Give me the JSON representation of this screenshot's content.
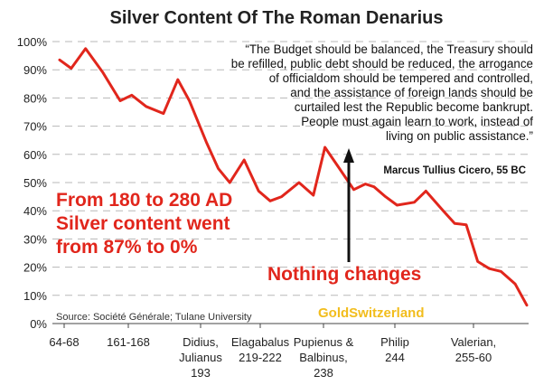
{
  "chart_data": {
    "type": "line",
    "title": "Silver Content Of The Roman Denarius",
    "xlabel": "",
    "ylabel": "",
    "ylim": [
      0,
      100
    ],
    "yticks": [
      "0%",
      "10%",
      "20%",
      "30%",
      "40%",
      "50%",
      "60%",
      "70%",
      "80%",
      "90%",
      "100%"
    ],
    "categories": [
      "64-68",
      "161-168",
      "Didius, Julianus 193",
      "Elagabalus 219-222",
      "Pupienus & Balbinus, 238",
      "Philip 244",
      "Valerian, 255-60"
    ],
    "series": [
      {
        "name": "Silver content (%)",
        "color": "#e1261c",
        "x": [
          0,
          0.4,
          0.9,
          1.5,
          2.1,
          2.5,
          3.0,
          3.6,
          4.1,
          4.5,
          5.1,
          5.5,
          5.9,
          6.4,
          6.9,
          7.3,
          7.7,
          8.3,
          8.8,
          9.2,
          9.7,
          10.2,
          10.6,
          10.9,
          11.3,
          11.7,
          12.3,
          12.7,
          13.3,
          13.7,
          14.1,
          14.5,
          14.9,
          15.3,
          15.8,
          16.2
        ],
        "values": [
          93.5,
          90.5,
          97.5,
          89,
          79,
          81,
          77,
          74.5,
          86.5,
          79,
          64,
          55,
          50,
          58,
          47,
          43.5,
          45,
          50,
          45.5,
          62.5,
          55,
          47.5,
          49.5,
          48.5,
          45,
          42,
          43,
          47,
          40,
          35.5,
          35,
          22,
          19.5,
          18.5,
          14,
          6.5
        ]
      }
    ],
    "quote_lines": [
      "“The Budget should be balanced, the Treasury should",
      "be refilled, public debt should be reduced, the arrogance",
      "of officialdom should be tempered and controlled,",
      "and the assistance of foreign lands should be",
      "curtailed lest the Republic become bankrupt.",
      "People must again learn to work, instead of",
      "living on public assistance.”"
    ],
    "quote_attribution": "Marcus Tullius Cicero, 55 BC",
    "annotation_lines": [
      "From 180 to 280 AD",
      "Silver content went",
      "from 87% to 0%"
    ],
    "annotation_nothing": "Nothing changes",
    "watermark": "GoldSwitzerland",
    "source": "Source: Société Générale; Tulane University"
  },
  "colors": {
    "line": "#e1261c",
    "annotation": "#e1261c",
    "watermark": "#f2bd1d",
    "grid": "#b8b8b8",
    "axis": "#444444",
    "arrow": "#111111"
  }
}
